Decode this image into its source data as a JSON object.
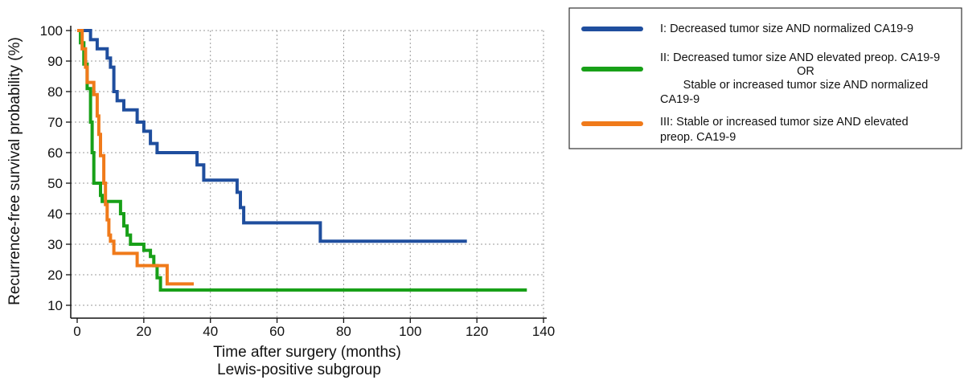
{
  "chart_data": {
    "type": "line",
    "subtype": "kaplan-meier-step",
    "xlabel": "Time after surgery (months)",
    "subtitle": "Lewis-positive subgroup",
    "ylabel": "Recurrence-free survival probability (%)",
    "xlim": [
      0,
      140
    ],
    "ylim": [
      10,
      100
    ],
    "xticks": [
      0,
      20,
      40,
      60,
      80,
      100,
      120,
      140
    ],
    "yticks": [
      10,
      20,
      30,
      40,
      50,
      60,
      70,
      80,
      90,
      100
    ],
    "grid": true,
    "legend_position": "top-right",
    "series": [
      {
        "legend_lines": [
          "I: Decreased tumor size AND normalized CA19-9"
        ],
        "color": "#1f4e9e",
        "points": [
          [
            0,
            100
          ],
          [
            4,
            100
          ],
          [
            4,
            97
          ],
          [
            6,
            97
          ],
          [
            6,
            94
          ],
          [
            9,
            94
          ],
          [
            9,
            91
          ],
          [
            10,
            91
          ],
          [
            10,
            88
          ],
          [
            11,
            88
          ],
          [
            11,
            80
          ],
          [
            12,
            80
          ],
          [
            12,
            77
          ],
          [
            14,
            77
          ],
          [
            14,
            74
          ],
          [
            18,
            74
          ],
          [
            18,
            70
          ],
          [
            20,
            70
          ],
          [
            20,
            67
          ],
          [
            22,
            67
          ],
          [
            22,
            63
          ],
          [
            24,
            63
          ],
          [
            24,
            60
          ],
          [
            36,
            60
          ],
          [
            36,
            56
          ],
          [
            38,
            56
          ],
          [
            38,
            51
          ],
          [
            48,
            51
          ],
          [
            48,
            47
          ],
          [
            49,
            47
          ],
          [
            49,
            42
          ],
          [
            50,
            42
          ],
          [
            50,
            37
          ],
          [
            73,
            37
          ],
          [
            73,
            31
          ],
          [
            117,
            31
          ]
        ]
      },
      {
        "legend_lines": [
          "II: Decreased tumor size AND elevated preop. CA19-9",
          "OR",
          "Stable or increased tumor size AND normalized",
          "CA19-9"
        ],
        "color": "#18a018",
        "points": [
          [
            0,
            100
          ],
          [
            1,
            100
          ],
          [
            1,
            96
          ],
          [
            2,
            96
          ],
          [
            2,
            89
          ],
          [
            3,
            89
          ],
          [
            3,
            81
          ],
          [
            4,
            81
          ],
          [
            4,
            70
          ],
          [
            4.5,
            70
          ],
          [
            4.5,
            60
          ],
          [
            5,
            60
          ],
          [
            5,
            50
          ],
          [
            7,
            50
          ],
          [
            7,
            46
          ],
          [
            7.5,
            46
          ],
          [
            7.5,
            44
          ],
          [
            13,
            44
          ],
          [
            13,
            40
          ],
          [
            14,
            40
          ],
          [
            14,
            36
          ],
          [
            15,
            36
          ],
          [
            15,
            33
          ],
          [
            16,
            33
          ],
          [
            16,
            30
          ],
          [
            20,
            30
          ],
          [
            20,
            28
          ],
          [
            22,
            28
          ],
          [
            22,
            26
          ],
          [
            23,
            26
          ],
          [
            23,
            23
          ],
          [
            24,
            23
          ],
          [
            24,
            19
          ],
          [
            25,
            19
          ],
          [
            25,
            15
          ],
          [
            135,
            15
          ]
        ]
      },
      {
        "legend_lines": [
          "III: Stable or increased tumor size AND elevated",
          "preop. CA19-9"
        ],
        "color": "#f07a1a",
        "points": [
          [
            0,
            100
          ],
          [
            1.5,
            100
          ],
          [
            1.5,
            94
          ],
          [
            2.5,
            94
          ],
          [
            2.5,
            88
          ],
          [
            3,
            88
          ],
          [
            3,
            83
          ],
          [
            5,
            83
          ],
          [
            5,
            79
          ],
          [
            6,
            79
          ],
          [
            6,
            72
          ],
          [
            6.5,
            72
          ],
          [
            6.5,
            66
          ],
          [
            7,
            66
          ],
          [
            7,
            59
          ],
          [
            8,
            59
          ],
          [
            8,
            50
          ],
          [
            8.5,
            50
          ],
          [
            8.5,
            43
          ],
          [
            9,
            43
          ],
          [
            9,
            38
          ],
          [
            9.5,
            38
          ],
          [
            9.5,
            33
          ],
          [
            10,
            33
          ],
          [
            10,
            31
          ],
          [
            11,
            31
          ],
          [
            11,
            27
          ],
          [
            18,
            27
          ],
          [
            18,
            23
          ],
          [
            27,
            23
          ],
          [
            27,
            17
          ],
          [
            35,
            17
          ]
        ]
      }
    ]
  }
}
